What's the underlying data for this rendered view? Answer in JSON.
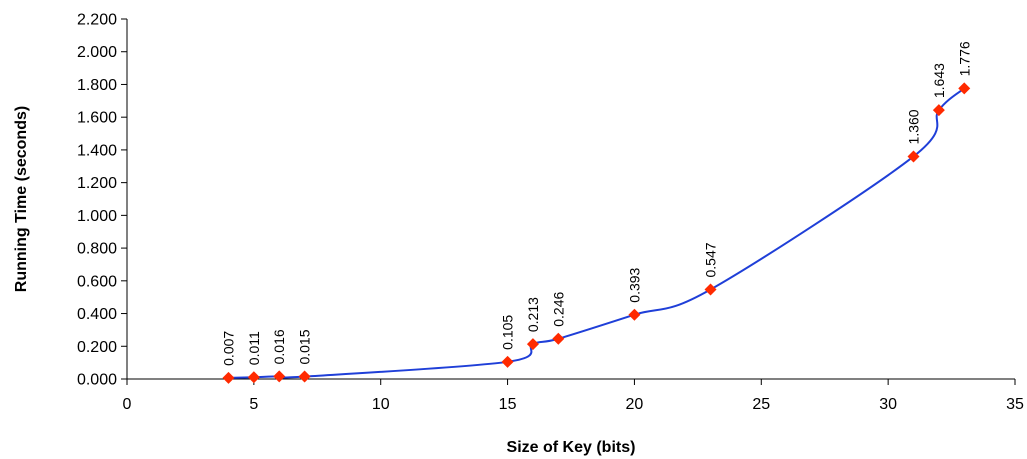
{
  "chart_data": {
    "type": "line",
    "title": "",
    "xlabel": "Size of Key (bits)",
    "ylabel": "Running Time (seconds)",
    "xlim": [
      0,
      35
    ],
    "ylim": [
      0,
      2.2
    ],
    "x_ticks": [
      0,
      5,
      10,
      15,
      20,
      25,
      30,
      35
    ],
    "x_tick_labels": [
      "0",
      "5",
      "10",
      "15",
      "20",
      "25",
      "30",
      "35"
    ],
    "y_ticks": [
      0,
      0.2,
      0.4,
      0.6,
      0.8,
      1.0,
      1.2,
      1.4,
      1.6,
      1.8,
      2.0,
      2.2
    ],
    "y_tick_labels": [
      "0.000",
      "0.200",
      "0.400",
      "0.600",
      "0.800",
      "1.000",
      "1.200",
      "1.400",
      "1.600",
      "1.800",
      "2.000",
      "2.200"
    ],
    "grid": false,
    "legend": false,
    "line_color": "#1f3fd8",
    "marker_color": "#ff2a00",
    "marker": "diamond",
    "smooth": true,
    "series": [
      {
        "x": [
          4,
          5,
          6,
          7,
          15,
          16,
          17,
          20,
          23,
          31,
          32,
          33
        ],
        "y": [
          0.007,
          0.011,
          0.016,
          0.015,
          0.105,
          0.213,
          0.246,
          0.393,
          0.547,
          1.36,
          1.643,
          1.776
        ],
        "labels": [
          "0.007",
          "0.011",
          "0.016",
          "0.015",
          "0.105",
          "0.213",
          "0.246",
          "0.393",
          "0.547",
          "1.360",
          "1.643",
          "1.776"
        ]
      }
    ]
  }
}
